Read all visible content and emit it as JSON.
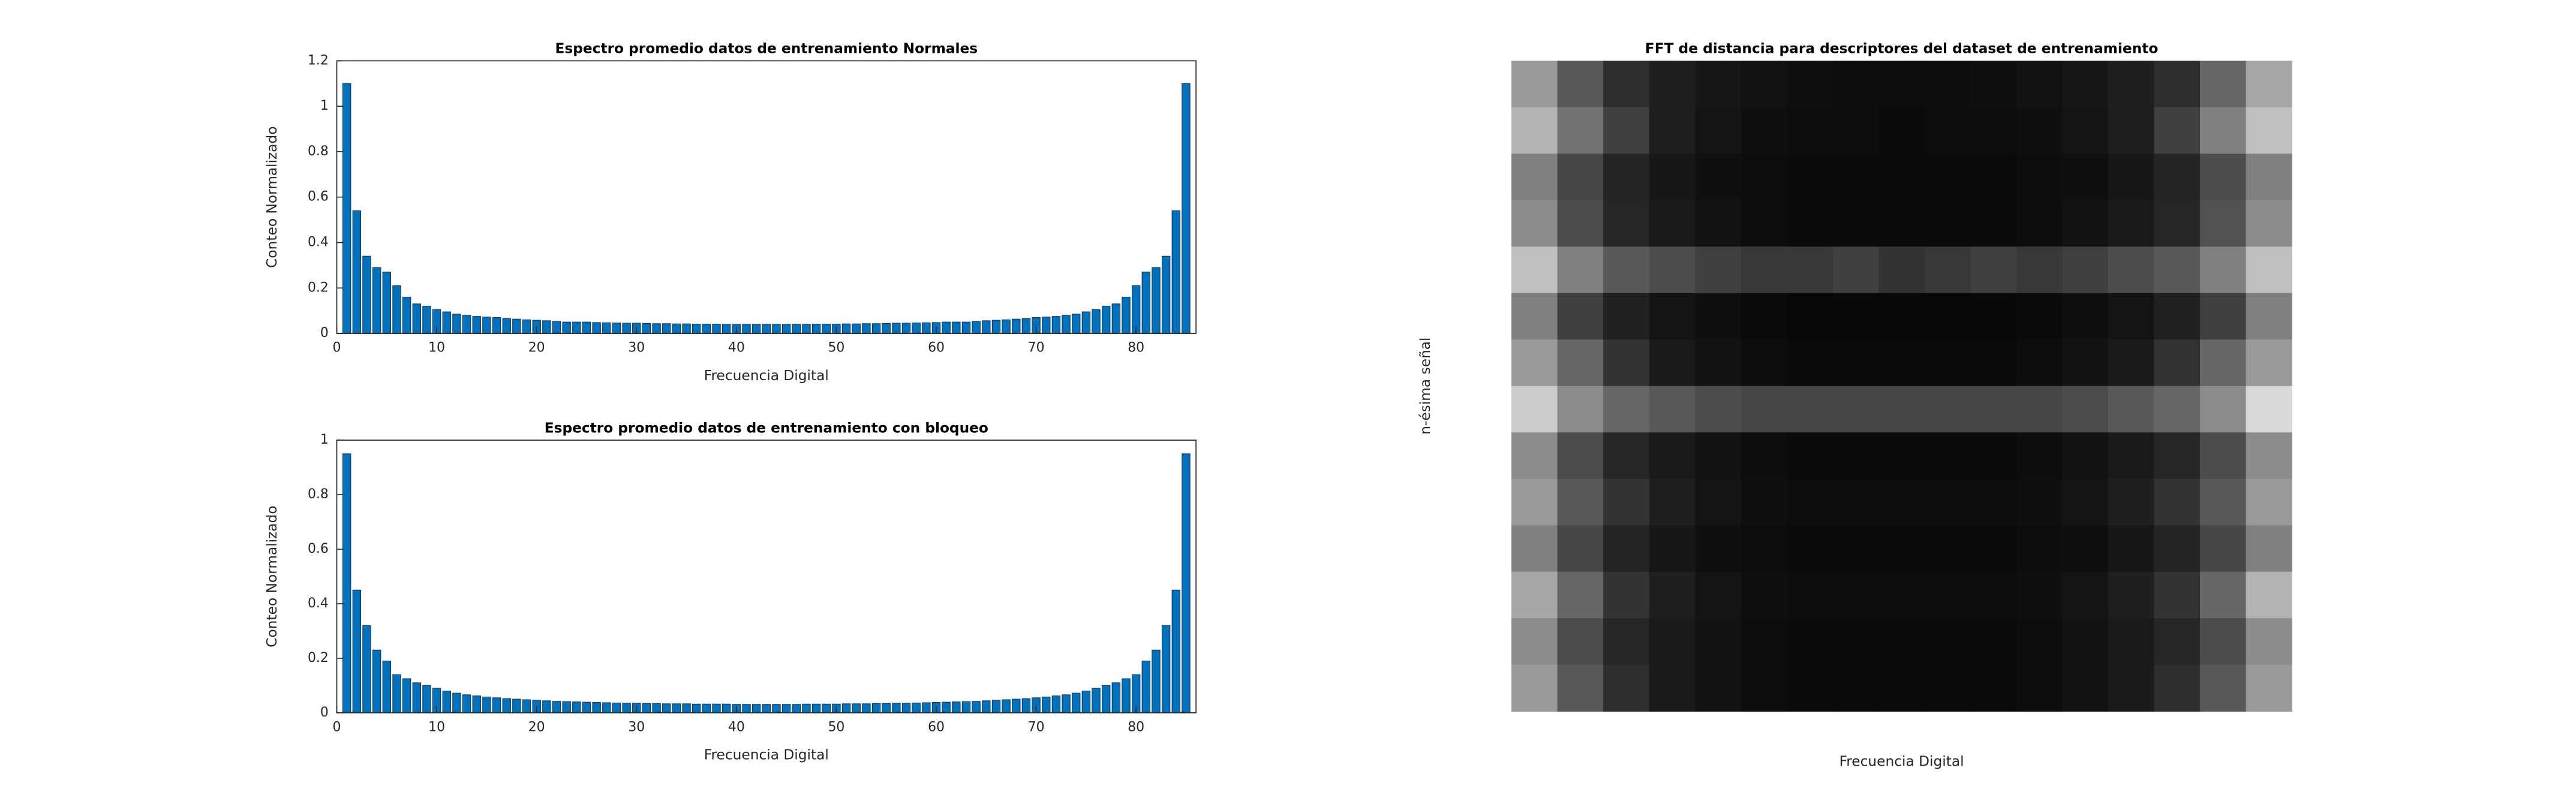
{
  "chart_data": [
    {
      "type": "bar",
      "title": "Espectro promedio datos de entrenamiento Normales",
      "xlabel": "Frecuencia Digital",
      "ylabel": "Conteo Normalizado",
      "color": "#0072bd",
      "edgecolor": "#17375e",
      "x": [
        1,
        2,
        3,
        4,
        5,
        6,
        7,
        8,
        9,
        10,
        11,
        12,
        13,
        14,
        15,
        16,
        17,
        18,
        19,
        20,
        21,
        22,
        23,
        24,
        25,
        26,
        27,
        28,
        29,
        30,
        31,
        32,
        33,
        34,
        35,
        36,
        37,
        38,
        39,
        40,
        41,
        42,
        43,
        44,
        45,
        46,
        47,
        48,
        49,
        50,
        51,
        52,
        53,
        54,
        55,
        56,
        57,
        58,
        59,
        60,
        61,
        62,
        63,
        64,
        65,
        66,
        67,
        68,
        69,
        70,
        71,
        72,
        73,
        74,
        75,
        76,
        77,
        78,
        79,
        80,
        81,
        82,
        83,
        84,
        85
      ],
      "values": [
        1.1,
        0.54,
        0.34,
        0.29,
        0.27,
        0.21,
        0.16,
        0.13,
        0.12,
        0.105,
        0.095,
        0.085,
        0.08,
        0.075,
        0.072,
        0.07,
        0.066,
        0.063,
        0.06,
        0.058,
        0.056,
        0.053,
        0.05,
        0.05,
        0.05,
        0.048,
        0.047,
        0.046,
        0.045,
        0.045,
        0.044,
        0.043,
        0.043,
        0.042,
        0.042,
        0.041,
        0.041,
        0.041,
        0.04,
        0.04,
        0.04,
        0.04,
        0.04,
        0.04,
        0.04,
        0.04,
        0.04,
        0.041,
        0.041,
        0.041,
        0.042,
        0.042,
        0.043,
        0.043,
        0.044,
        0.045,
        0.045,
        0.046,
        0.047,
        0.048,
        0.05,
        0.05,
        0.05,
        0.053,
        0.056,
        0.058,
        0.06,
        0.063,
        0.066,
        0.07,
        0.072,
        0.075,
        0.08,
        0.085,
        0.095,
        0.105,
        0.12,
        0.13,
        0.16,
        0.21,
        0.27,
        0.29,
        0.34,
        0.54,
        1.1
      ],
      "xlim": [
        0,
        86
      ],
      "xticks": [
        0,
        10,
        20,
        30,
        40,
        50,
        60,
        70,
        80
      ],
      "ylim": [
        0,
        1.2
      ],
      "yticks": [
        0,
        0.2,
        0.4,
        0.6,
        0.8,
        1,
        1.2
      ]
    },
    {
      "type": "bar",
      "title": "Espectro promedio datos de entrenamiento con bloqueo",
      "xlabel": "Frecuencia Digital",
      "ylabel": "Conteo Normalizado",
      "color": "#0072bd",
      "edgecolor": "#17375e",
      "x": [
        1,
        2,
        3,
        4,
        5,
        6,
        7,
        8,
        9,
        10,
        11,
        12,
        13,
        14,
        15,
        16,
        17,
        18,
        19,
        20,
        21,
        22,
        23,
        24,
        25,
        26,
        27,
        28,
        29,
        30,
        31,
        32,
        33,
        34,
        35,
        36,
        37,
        38,
        39,
        40,
        41,
        42,
        43,
        44,
        45,
        46,
        47,
        48,
        49,
        50,
        51,
        52,
        53,
        54,
        55,
        56,
        57,
        58,
        59,
        60,
        61,
        62,
        63,
        64,
        65,
        66,
        67,
        68,
        69,
        70,
        71,
        72,
        73,
        74,
        75,
        76,
        77,
        78,
        79,
        80,
        81,
        82,
        83,
        84,
        85
      ],
      "values": [
        0.95,
        0.45,
        0.32,
        0.23,
        0.19,
        0.14,
        0.125,
        0.11,
        0.1,
        0.09,
        0.08,
        0.072,
        0.066,
        0.062,
        0.058,
        0.055,
        0.052,
        0.05,
        0.048,
        0.046,
        0.044,
        0.042,
        0.041,
        0.04,
        0.039,
        0.038,
        0.037,
        0.036,
        0.035,
        0.035,
        0.034,
        0.034,
        0.033,
        0.033,
        0.033,
        0.032,
        0.032,
        0.032,
        0.032,
        0.031,
        0.031,
        0.031,
        0.031,
        0.031,
        0.031,
        0.031,
        0.032,
        0.032,
        0.032,
        0.032,
        0.033,
        0.033,
        0.033,
        0.034,
        0.034,
        0.035,
        0.035,
        0.036,
        0.037,
        0.038,
        0.039,
        0.04,
        0.041,
        0.042,
        0.044,
        0.046,
        0.048,
        0.05,
        0.052,
        0.055,
        0.058,
        0.062,
        0.066,
        0.072,
        0.08,
        0.09,
        0.1,
        0.11,
        0.125,
        0.14,
        0.19,
        0.23,
        0.32,
        0.45,
        0.95
      ],
      "xlim": [
        0,
        86
      ],
      "xticks": [
        0,
        10,
        20,
        30,
        40,
        50,
        60,
        70,
        80
      ],
      "ylim": [
        0,
        1
      ],
      "yticks": [
        0,
        0.2,
        0.4,
        0.6,
        0.8,
        1
      ]
    },
    {
      "type": "heatmap",
      "title": "FFT de distancia para descriptores del dataset de entrenamiento",
      "xlabel": "Frecuencia Digital",
      "ylabel": "n-ésima señal",
      "values": [
        [
          0.6,
          0.35,
          0.18,
          0.12,
          0.09,
          0.07,
          0.06,
          0.05,
          0.05,
          0.05,
          0.06,
          0.07,
          0.09,
          0.12,
          0.18,
          0.4,
          0.65
        ],
        [
          0.7,
          0.45,
          0.25,
          0.12,
          0.08,
          0.06,
          0.05,
          0.05,
          0.04,
          0.05,
          0.05,
          0.06,
          0.08,
          0.12,
          0.25,
          0.5,
          0.75
        ],
        [
          0.5,
          0.28,
          0.14,
          0.09,
          0.06,
          0.05,
          0.04,
          0.04,
          0.04,
          0.04,
          0.04,
          0.05,
          0.06,
          0.09,
          0.14,
          0.3,
          0.5
        ],
        [
          0.55,
          0.3,
          0.15,
          0.1,
          0.07,
          0.05,
          0.04,
          0.04,
          0.04,
          0.04,
          0.04,
          0.05,
          0.07,
          0.1,
          0.15,
          0.32,
          0.55
        ],
        [
          0.75,
          0.5,
          0.35,
          0.3,
          0.25,
          0.22,
          0.22,
          0.25,
          0.2,
          0.22,
          0.25,
          0.22,
          0.25,
          0.3,
          0.35,
          0.5,
          0.75
        ],
        [
          0.5,
          0.25,
          0.13,
          0.08,
          0.06,
          0.04,
          0.03,
          0.03,
          0.03,
          0.03,
          0.03,
          0.04,
          0.06,
          0.08,
          0.13,
          0.25,
          0.5
        ],
        [
          0.6,
          0.4,
          0.2,
          0.1,
          0.07,
          0.05,
          0.04,
          0.04,
          0.04,
          0.04,
          0.04,
          0.05,
          0.07,
          0.1,
          0.2,
          0.4,
          0.6
        ],
        [
          0.8,
          0.55,
          0.4,
          0.35,
          0.3,
          0.28,
          0.28,
          0.28,
          0.28,
          0.28,
          0.28,
          0.28,
          0.3,
          0.35,
          0.4,
          0.55,
          0.85
        ],
        [
          0.55,
          0.3,
          0.15,
          0.1,
          0.07,
          0.05,
          0.04,
          0.04,
          0.04,
          0.04,
          0.04,
          0.05,
          0.07,
          0.1,
          0.15,
          0.3,
          0.55
        ],
        [
          0.6,
          0.35,
          0.2,
          0.12,
          0.08,
          0.06,
          0.05,
          0.05,
          0.05,
          0.05,
          0.05,
          0.06,
          0.08,
          0.12,
          0.2,
          0.35,
          0.6
        ],
        [
          0.5,
          0.28,
          0.14,
          0.09,
          0.06,
          0.05,
          0.04,
          0.04,
          0.04,
          0.04,
          0.04,
          0.05,
          0.06,
          0.09,
          0.14,
          0.28,
          0.5
        ],
        [
          0.65,
          0.4,
          0.2,
          0.12,
          0.08,
          0.06,
          0.05,
          0.05,
          0.05,
          0.05,
          0.05,
          0.06,
          0.08,
          0.12,
          0.2,
          0.4,
          0.7
        ],
        [
          0.55,
          0.3,
          0.15,
          0.1,
          0.07,
          0.05,
          0.04,
          0.04,
          0.04,
          0.04,
          0.04,
          0.05,
          0.07,
          0.1,
          0.15,
          0.3,
          0.55
        ],
        [
          0.6,
          0.35,
          0.18,
          0.1,
          0.07,
          0.05,
          0.04,
          0.04,
          0.04,
          0.04,
          0.04,
          0.05,
          0.07,
          0.1,
          0.18,
          0.35,
          0.6
        ]
      ]
    }
  ]
}
